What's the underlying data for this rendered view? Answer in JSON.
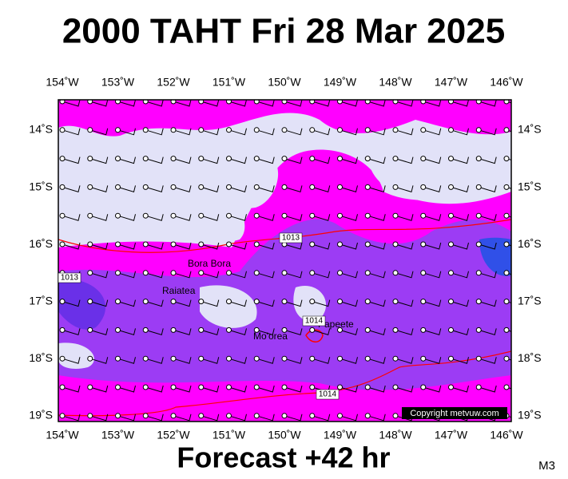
{
  "header": {
    "title": "2000 TAHT Fri 28 Mar 2025"
  },
  "map": {
    "lon_labels": [
      "154˚W",
      "153˚W",
      "152˚W",
      "151˚W",
      "150˚W",
      "149˚W",
      "148˚W",
      "147˚W",
      "146˚W"
    ],
    "lat_labels": [
      "14˚S",
      "15˚S",
      "16˚S",
      "17˚S",
      "18˚S",
      "19˚S"
    ],
    "places": [
      {
        "label": "Bora Bora"
      },
      {
        "label": "Raiatea"
      },
      {
        "label": "Mo'orea"
      },
      {
        "label": "Papeete"
      }
    ],
    "isobars": [
      {
        "label": "1013"
      },
      {
        "label": "1013"
      },
      {
        "label": "1014"
      },
      {
        "label": "1014"
      }
    ],
    "copyright": "Copyright metvuw.com"
  },
  "footer": {
    "forecast": "Forecast +42 hr",
    "corner": "M3"
  }
}
